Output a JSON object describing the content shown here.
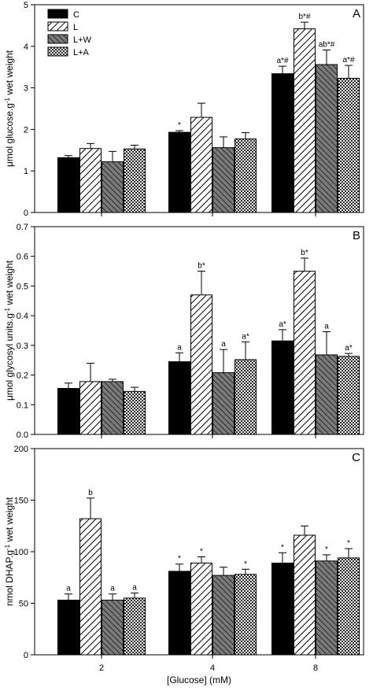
{
  "chart_data": [
    {
      "type": "bar",
      "panel": "A",
      "ylabel": "μmol glucose.g<sup>-1</sup> wet weight",
      "ylim": [
        0,
        5
      ],
      "yticks": [
        0,
        1,
        2,
        3,
        4,
        5
      ],
      "categories": [
        "2",
        "4",
        "8"
      ],
      "series": [
        {
          "name": "C",
          "pattern": "solid-black",
          "values": [
            1.32,
            1.93,
            3.34
          ],
          "errors": [
            0.05,
            0.04,
            0.18
          ]
        },
        {
          "name": "L",
          "pattern": "diagonal-hatch",
          "values": [
            1.54,
            2.29,
            4.42
          ],
          "errors": [
            0.12,
            0.34,
            0.16
          ]
        },
        {
          "name": "L+W",
          "pattern": "dark-gray-hatch",
          "values": [
            1.22,
            1.56,
            3.56
          ],
          "errors": [
            0.25,
            0.26,
            0.35
          ]
        },
        {
          "name": "L+A",
          "pattern": "dotted",
          "values": [
            1.53,
            1.77,
            3.23
          ],
          "errors": [
            0.09,
            0.15,
            0.31
          ]
        }
      ],
      "annotations": [
        [
          "",
          "",
          "",
          ""
        ],
        [
          "*",
          "",
          "",
          ""
        ],
        [
          "a*#",
          "b*#",
          "ab*#",
          "a*#"
        ]
      ],
      "legend": true,
      "legend_position": "top-left"
    },
    {
      "type": "bar",
      "panel": "B",
      "ylabel": "μmol glycosyl units.g<sup>-1</sup> wet weight",
      "ylim": [
        0,
        0.7
      ],
      "yticks": [
        "0.0",
        "0.1",
        "0.2",
        "0.3",
        "0.4",
        "0.5",
        "0.6",
        "0.7"
      ],
      "categories": [
        "2",
        "4",
        "8"
      ],
      "series": [
        {
          "name": "C",
          "values": [
            0.155,
            0.245,
            0.315
          ],
          "errors": [
            0.018,
            0.03,
            0.038
          ]
        },
        {
          "name": "L",
          "values": [
            0.178,
            0.47,
            0.55
          ],
          "errors": [
            0.062,
            0.08,
            0.044
          ]
        },
        {
          "name": "L+W",
          "values": [
            0.178,
            0.208,
            0.268
          ],
          "errors": [
            0.008,
            0.078,
            0.078
          ]
        },
        {
          "name": "L+A",
          "values": [
            0.145,
            0.252,
            0.263
          ],
          "errors": [
            0.014,
            0.06,
            0.01
          ]
        }
      ],
      "annotations": [
        [
          "",
          "",
          "",
          ""
        ],
        [
          "a",
          "b*",
          "a",
          "a*"
        ],
        [
          "a*",
          "b*",
          "a",
          "a*"
        ]
      ],
      "legend": false
    },
    {
      "type": "bar",
      "panel": "C",
      "ylabel": "nmol DHAP.g<sup>-1</sup> wet weight",
      "xlabel": "[Glucose] (mM)",
      "ylim": [
        0,
        200
      ],
      "yticks": [
        0,
        50,
        100,
        150,
        200
      ],
      "categories": [
        "2",
        "4",
        "8"
      ],
      "series": [
        {
          "name": "C",
          "values": [
            53,
            81,
            89
          ],
          "errors": [
            6,
            7,
            10
          ]
        },
        {
          "name": "L",
          "values": [
            132,
            89,
            116
          ],
          "errors": [
            20,
            6,
            9
          ]
        },
        {
          "name": "L+W",
          "values": [
            53,
            77,
            91
          ],
          "errors": [
            6,
            8,
            6
          ]
        },
        {
          "name": "L+A",
          "values": [
            55,
            78,
            94
          ],
          "errors": [
            5,
            5,
            9
          ]
        }
      ],
      "annotations": [
        [
          "a",
          "b",
          "a",
          "a"
        ],
        [
          "*",
          "*",
          "",
          "*"
        ],
        [
          "*",
          "",
          "*",
          "*"
        ]
      ],
      "legend": false
    }
  ]
}
